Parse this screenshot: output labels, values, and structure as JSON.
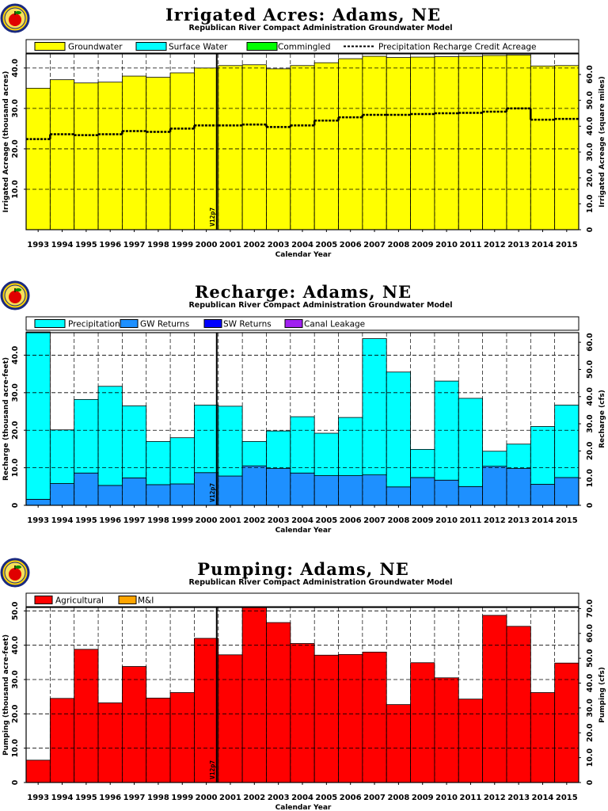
{
  "colors": {
    "groundwater": "#ffff00",
    "surface_water": "#00ffff",
    "commingled": "#00ff00",
    "precipitation": "#00ffff",
    "gw_returns": "#1e90ff",
    "sw_returns": "#0000ff",
    "canal_leakage": "#a020f0",
    "agricultural": "#ff0000",
    "mi": "#ffa500"
  },
  "chart_data": [
    {
      "type": "bar",
      "title": "Irrigated Acres: Adams, NE",
      "subtitle": "Republican River Compact Administration Groundwater Model",
      "xlabel": "Calendar Year",
      "ylabel": "Irrigated Acreage (thousand acres)",
      "y2label": "Irrigated Acreage (square miles)",
      "marker_label": "V12p7",
      "categories": [
        "1993",
        "1994",
        "1995",
        "1996",
        "1997",
        "1998",
        "1999",
        "2000",
        "2001",
        "2002",
        "2003",
        "2004",
        "2005",
        "2006",
        "2007",
        "2008",
        "2009",
        "2010",
        "2011",
        "2012",
        "2013",
        "2014",
        "2015"
      ],
      "ylim": [
        0,
        43.5
      ],
      "y_ticks": [
        "10.0",
        "20.0",
        "30.0",
        "40.0"
      ],
      "y2_ticks": [
        "0",
        "10.0",
        "20.0",
        "30.0",
        "40.0",
        "50.0",
        "60.0"
      ],
      "grid": true,
      "legend": "top",
      "series": [
        {
          "name": "Groundwater",
          "values": [
            35.0,
            37.1,
            36.3,
            36.5,
            38.0,
            37.7,
            38.8,
            40.0,
            40.6,
            40.8,
            39.8,
            40.6,
            41.3,
            42.3,
            42.9,
            42.6,
            42.7,
            42.8,
            42.9,
            43.1,
            43.2,
            40.5,
            40.6
          ]
        },
        {
          "name": "Surface Water",
          "values": [
            0,
            0,
            0,
            0,
            0,
            0,
            0,
            0,
            0,
            0,
            0,
            0,
            0,
            0,
            0,
            0,
            0,
            0,
            0,
            0,
            0,
            0,
            0
          ]
        },
        {
          "name": "Commingled",
          "values": [
            0,
            0,
            0,
            0,
            0,
            0,
            0,
            0,
            0,
            0,
            0,
            0,
            0,
            0,
            0,
            0,
            0,
            0,
            0,
            0,
            0,
            0,
            0
          ]
        },
        {
          "name": "Precipitation Recharge Credit Acreage",
          "values": [
            22.4,
            23.6,
            23.4,
            23.6,
            24.4,
            24.2,
            25.0,
            25.8,
            25.8,
            26.0,
            25.4,
            25.8,
            27.0,
            27.8,
            28.4,
            28.4,
            28.6,
            28.8,
            28.9,
            29.2,
            30.0,
            27.2,
            27.4
          ]
        }
      ]
    },
    {
      "type": "bar",
      "title": "Recharge: Adams, NE",
      "subtitle": "Republican River Compact Administration Groundwater Model",
      "xlabel": "Calendar Year",
      "ylabel": "Recharge (thousand acre-feet)",
      "y2label": "Recharge (cfs)",
      "marker_label": "V12p7",
      "categories": [
        "1993",
        "1994",
        "1995",
        "1996",
        "1997",
        "1998",
        "1999",
        "2000",
        "2001",
        "2002",
        "2003",
        "2004",
        "2005",
        "2006",
        "2007",
        "2008",
        "2009",
        "2010",
        "2011",
        "2012",
        "2013",
        "2014",
        "2015"
      ],
      "ylim": [
        0,
        46
      ],
      "y_ticks": [
        "0",
        "10.0",
        "20.0",
        "30.0",
        "40.0"
      ],
      "y2_ticks": [
        "0",
        "10.0",
        "20.0",
        "30.0",
        "40.0",
        "50.0",
        "60.0"
      ],
      "grid": true,
      "legend": "top",
      "series": [
        {
          "name": "Precipitation",
          "values": [
            44.6,
            14.3,
            19.6,
            26.4,
            19.2,
            11.5,
            12.3,
            18.0,
            18.6,
            6.5,
            10.0,
            15.0,
            11.3,
            15.5,
            36.3,
            30.6,
            7.5,
            26.4,
            23.5,
            4.0,
            6.5,
            15.4,
            19.3
          ]
        },
        {
          "name": "GW Returns",
          "values": [
            1.6,
            5.8,
            8.6,
            5.3,
            7.3,
            5.5,
            5.7,
            8.7,
            7.8,
            10.5,
            9.8,
            8.6,
            7.9,
            7.9,
            8.1,
            4.9,
            7.4,
            6.7,
            5.0,
            10.4,
            9.8,
            5.6,
            7.4
          ]
        },
        {
          "name": "SW Returns",
          "values": [
            0,
            0,
            0,
            0,
            0,
            0,
            0,
            0,
            0,
            0,
            0,
            0,
            0,
            0,
            0,
            0,
            0,
            0,
            0,
            0,
            0,
            0,
            0
          ]
        },
        {
          "name": "Canal Leakage",
          "values": [
            0,
            0,
            0,
            0,
            0,
            0,
            0,
            0,
            0,
            0,
            0,
            0,
            0,
            0,
            0,
            0,
            0,
            0,
            0,
            0,
            0,
            0,
            0
          ]
        }
      ]
    },
    {
      "type": "bar",
      "title": "Pumping: Adams, NE",
      "subtitle": "Republican River Compact Administration Groundwater Model",
      "xlabel": "Calendar Year",
      "ylabel": "Pumping (thousand acre-feet)",
      "y2label": "Pumping (cfs)",
      "marker_label": "V12p7",
      "categories": [
        "1993",
        "1994",
        "1995",
        "1996",
        "1997",
        "1998",
        "1999",
        "2000",
        "2001",
        "2002",
        "2003",
        "2004",
        "2005",
        "2006",
        "2007",
        "2008",
        "2009",
        "2010",
        "2011",
        "2012",
        "2013",
        "2014",
        "2015"
      ],
      "ylim": [
        0,
        51
      ],
      "y_ticks": [
        "0",
        "10.0",
        "20.0",
        "30.0",
        "40.0",
        "50.0"
      ],
      "y2_ticks": [
        "0",
        "10.0",
        "20.0",
        "30.0",
        "40.0",
        "50.0",
        "60.0",
        "70.0"
      ],
      "grid": true,
      "legend": "top",
      "series": [
        {
          "name": "Agricultural",
          "values": [
            6.5,
            24.5,
            38.8,
            23.2,
            33.8,
            24.6,
            26.2,
            42.0,
            37.2,
            51.0,
            46.6,
            40.5,
            37.1,
            37.3,
            38.0,
            22.7,
            34.9,
            30.5,
            24.3,
            48.7,
            45.5,
            26.2,
            34.8
          ]
        },
        {
          "name": "M&I",
          "values": [
            0,
            0,
            0,
            0,
            0,
            0,
            0,
            0,
            0,
            0,
            0,
            0,
            0,
            0,
            0,
            0,
            0,
            0,
            0,
            0,
            0,
            0,
            0
          ]
        }
      ]
    }
  ]
}
